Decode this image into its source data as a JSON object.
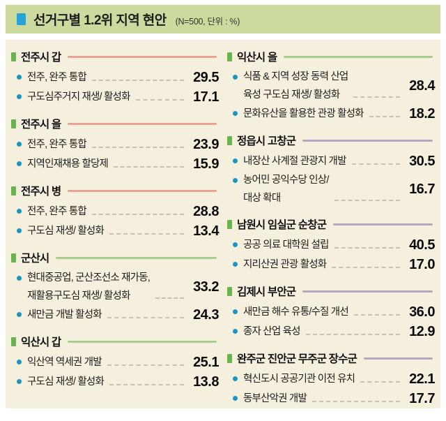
{
  "title": {
    "text": "선거구별 1.2위 지역 현안",
    "note": "(N=500, 단위 : %)"
  },
  "colors": {
    "title_bar_bg": "#ccdb9d",
    "panel_bg": "#f5efdd",
    "title_bullet": "#2aa2d3",
    "section_bullet": "#6fb052",
    "item_dot": "#1d94c1",
    "rule_salmon": "#e9a295",
    "rule_green": "#a9cd8f",
    "rule_purple": "#b2aabf"
  },
  "columns": [
    {
      "sections": [
        {
          "name": "전주시 갑",
          "rule_color": "#e9a295",
          "items": [
            {
              "text": "전주, 완주 통합",
              "value": "29.5"
            },
            {
              "text": "구도심주거지 재생/ 활성화",
              "value": "17.1"
            }
          ]
        },
        {
          "name": "전주시 을",
          "rule_color": "#e9a295",
          "items": [
            {
              "text": "전주, 완주 통합",
              "value": "23.9"
            },
            {
              "text": "지역인재채용 할당제",
              "value": "15.9"
            }
          ]
        },
        {
          "name": "전주시 병",
          "rule_color": "#e9a295",
          "items": [
            {
              "text": "전주, 완주 통합",
              "value": "28.8"
            },
            {
              "text": "구도심 재생/ 활성화",
              "value": "13.4"
            }
          ]
        },
        {
          "name": "군산시",
          "rule_color": "#a9cd8f",
          "items": [
            {
              "text": "현대중공업, 군산조선소 재가동,\n재활용구도심 재생/ 활성화",
              "value": "33.2"
            },
            {
              "text": "새만금 개발 활성화",
              "value": "24.3"
            }
          ]
        },
        {
          "name": "익산시 갑",
          "rule_color": "#a9cd8f",
          "items": [
            {
              "text": "익산역 역세권 개발",
              "value": "25.1"
            },
            {
              "text": "구도심 재생/ 활성화",
              "value": "13.8"
            }
          ]
        }
      ]
    },
    {
      "sections": [
        {
          "name": "익산시 을",
          "rule_color": "#a9cd8f",
          "items": [
            {
              "text": "식품 & 지역 성장 동력 산업\n육성 구도심 재생/ 활성화",
              "value": "28.4"
            },
            {
              "text": "문화유산을 활용한 관광 활성화",
              "value": "18.2"
            }
          ]
        },
        {
          "name": "정읍시 고창군",
          "rule_color": "#b2aabf",
          "items": [
            {
              "text": "내장산 사계절 관광지 개발",
              "value": "30.5"
            },
            {
              "text": "농어민 공익수당 인상/\n대상 확대",
              "value": "16.7"
            }
          ]
        },
        {
          "name": "남원시 임실군 순창군",
          "rule_color": "#b2aabf",
          "items": [
            {
              "text": "공공 의료 대학원 설립",
              "value": "40.5"
            },
            {
              "text": "지리산권 관광 활성화",
              "value": "17.0"
            }
          ]
        },
        {
          "name": "김제시 부안군",
          "rule_color": "#b2aabf",
          "items": [
            {
              "text": "새만금 해수 유통/수질 개선",
              "value": "36.0"
            },
            {
              "text": "종자 산업 육성",
              "value": "12.9"
            }
          ]
        },
        {
          "name": "완주군 진안군 무주군 장수군",
          "rule_color": "#b2aabf",
          "items": [
            {
              "text": "혁신도시 공공기관 이전 유치",
              "value": "22.1"
            },
            {
              "text": "동부산악권 개발",
              "value": "17.7"
            }
          ]
        }
      ]
    }
  ],
  "chart_data": {
    "type": "table",
    "title": "선거구별 1.2위 지역 현안",
    "note": "(N=500, 단위 : %)",
    "unit": "%",
    "n": 500,
    "groups": [
      {
        "district": "전주시 갑",
        "issues": [
          {
            "label": "전주, 완주 통합",
            "value": 29.5
          },
          {
            "label": "구도심주거지 재생/ 활성화",
            "value": 17.1
          }
        ]
      },
      {
        "district": "전주시 을",
        "issues": [
          {
            "label": "전주, 완주 통합",
            "value": 23.9
          },
          {
            "label": "지역인재채용 할당제",
            "value": 15.9
          }
        ]
      },
      {
        "district": "전주시 병",
        "issues": [
          {
            "label": "전주, 완주 통합",
            "value": 28.8
          },
          {
            "label": "구도심 재생/ 활성화",
            "value": 13.4
          }
        ]
      },
      {
        "district": "군산시",
        "issues": [
          {
            "label": "현대중공업, 군산조선소 재가동, 재활용구도심 재생/ 활성화",
            "value": 33.2
          },
          {
            "label": "새만금 개발 활성화",
            "value": 24.3
          }
        ]
      },
      {
        "district": "익산시 갑",
        "issues": [
          {
            "label": "익산역 역세권 개발",
            "value": 25.1
          },
          {
            "label": "구도심 재생/ 활성화",
            "value": 13.8
          }
        ]
      },
      {
        "district": "익산시 을",
        "issues": [
          {
            "label": "식품 & 지역 성장 동력 산업 육성 구도심 재생/ 활성화",
            "value": 28.4
          },
          {
            "label": "문화유산을 활용한 관광 활성화",
            "value": 18.2
          }
        ]
      },
      {
        "district": "정읍시 고창군",
        "issues": [
          {
            "label": "내장산 사계절 관광지 개발",
            "value": 30.5
          },
          {
            "label": "농어민 공익수당 인상/ 대상 확대",
            "value": 16.7
          }
        ]
      },
      {
        "district": "남원시 임실군 순창군",
        "issues": [
          {
            "label": "공공 의료 대학원 설립",
            "value": 40.5
          },
          {
            "label": "지리산권 관광 활성화",
            "value": 17.0
          }
        ]
      },
      {
        "district": "김제시 부안군",
        "issues": [
          {
            "label": "새만금 해수 유통/수질 개선",
            "value": 36.0
          },
          {
            "label": "종자 산업 육성",
            "value": 12.9
          }
        ]
      },
      {
        "district": "완주군 진안군 무주군 장수군",
        "issues": [
          {
            "label": "혁신도시 공공기관 이전 유치",
            "value": 22.1
          },
          {
            "label": "동부산악권 개발",
            "value": 17.7
          }
        ]
      }
    ]
  }
}
